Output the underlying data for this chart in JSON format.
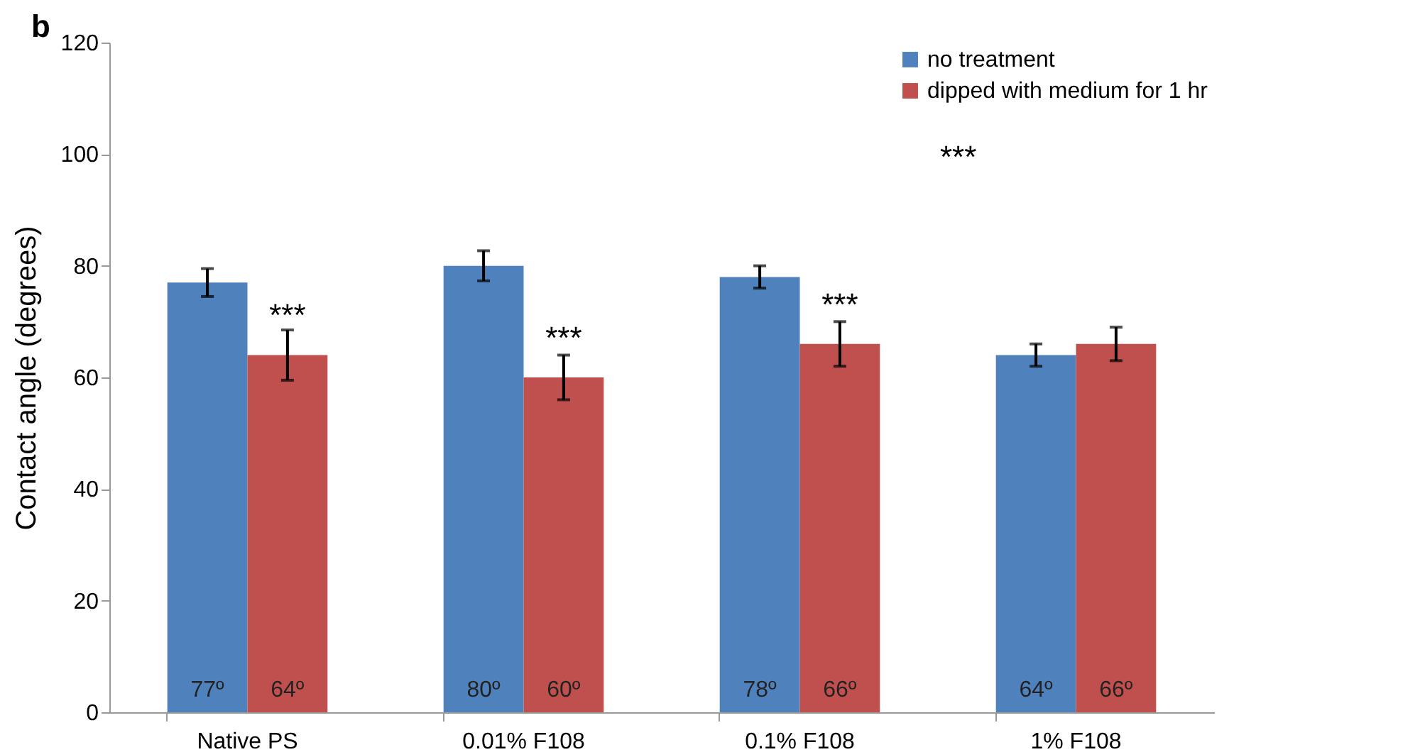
{
  "chart_data": {
    "type": "bar",
    "ylabel": "Contact angle (degrees)",
    "categories": [
      "Native PS",
      "0.01% F108",
      "0.1% F108",
      "1% F108"
    ],
    "series": [
      {
        "name": "no treatment",
        "color": "#4f81bd",
        "values": [
          77,
          80,
          78,
          64
        ],
        "errors": [
          2.5,
          2.7,
          2,
          2
        ],
        "value_labels": [
          "77º",
          "80º",
          "78º",
          "64º"
        ]
      },
      {
        "name": "dipped with medium for 1 hr",
        "color": "#c0504d",
        "values": [
          64,
          60,
          66,
          66
        ],
        "errors": [
          4.5,
          4,
          4,
          3
        ],
        "value_labels": [
          "64º",
          "60º",
          "66º",
          "66º"
        ]
      }
    ],
    "ylim": [
      0,
      120
    ],
    "yticks": [
      0,
      20,
      40,
      60,
      80,
      100,
      120
    ],
    "grid": false,
    "legend": "top right",
    "annotations": [
      "b",
      {
        "text": "***",
        "x": "Native PS",
        "y": 71
      },
      {
        "text": "***",
        "x": "0.01% F108",
        "y": 67
      },
      {
        "text": "***",
        "x": "0.1% F108",
        "y": 73
      },
      "***"
    ]
  }
}
